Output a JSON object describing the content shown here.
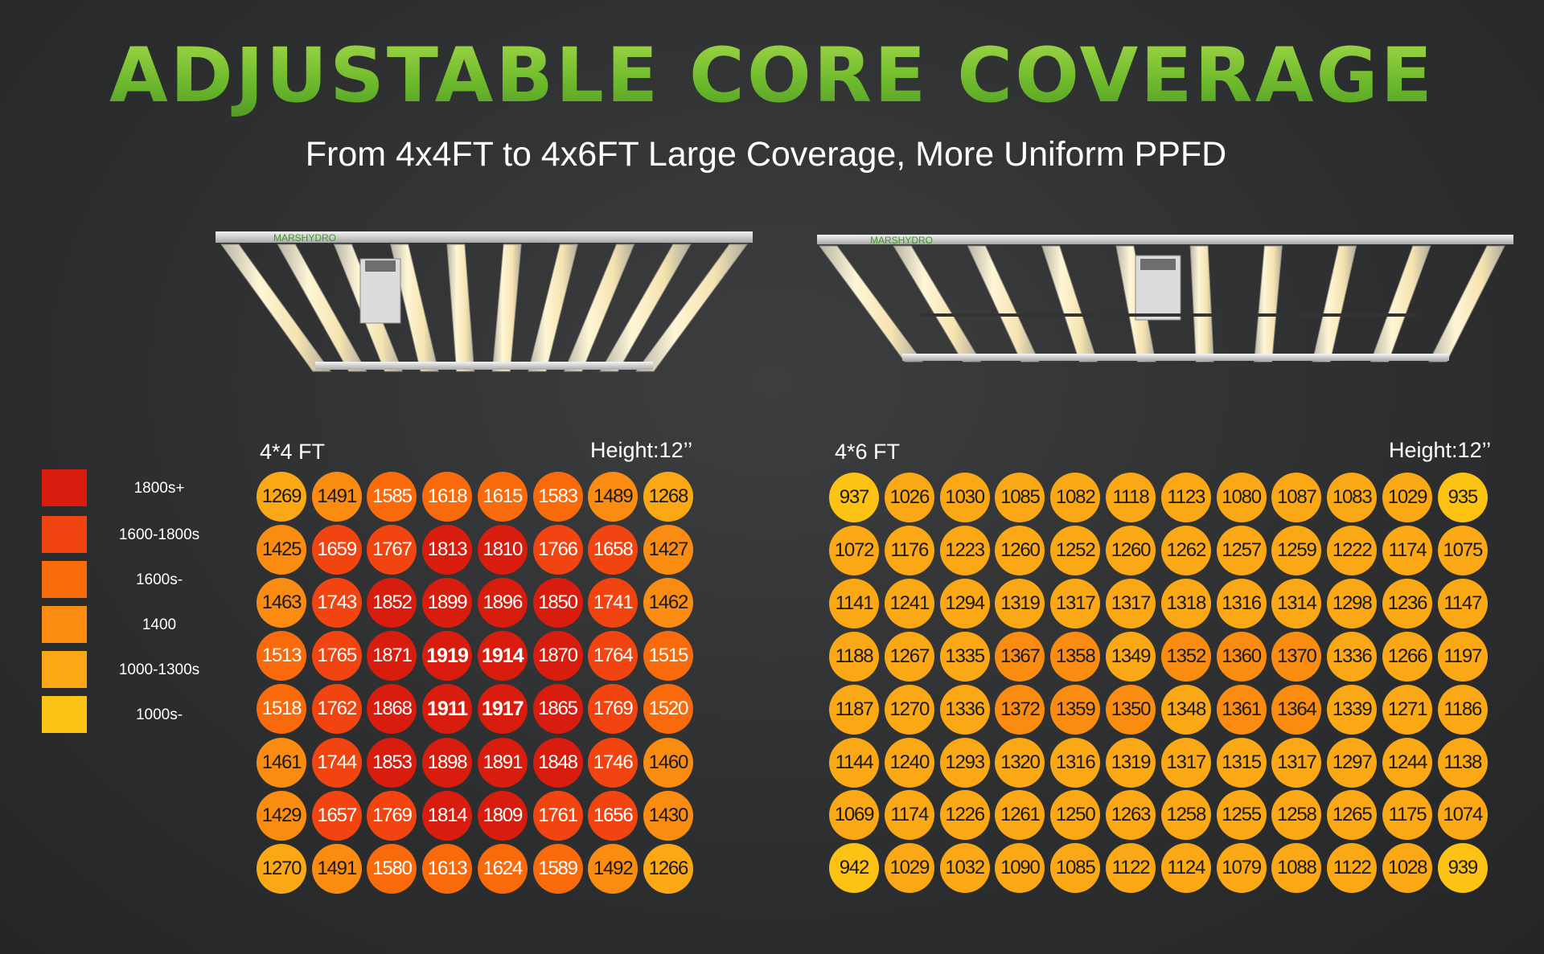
{
  "title": "ADJUSTABLE CORE COVERAGE",
  "subtitle": "From 4x4FT to 4x6FT Large Coverage, More Uniform PPFD",
  "brand": "MARSHYDRO",
  "colors": {
    "title_green": "#7ec43a",
    "c1800plus": "#d81c0d",
    "c1600_1800": "#f24410",
    "c1600minus": "#f86a0c",
    "c1400": "#fa8c12",
    "c1000_1300": "#fba816",
    "c1000minus": "#fdc314"
  },
  "legend": [
    {
      "label": "1800s+",
      "color": "#d81c0d"
    },
    {
      "label": "1600-1800s",
      "color": "#f24410"
    },
    {
      "label": "1600s-",
      "color": "#f86a0c"
    },
    {
      "label": "1400",
      "color": "#fa8c12"
    },
    {
      "label": "1000-1300s",
      "color": "#fba816"
    },
    {
      "label": "1000s-",
      "color": "#fdc314"
    }
  ],
  "grid_small": {
    "label": "4*4 FT",
    "height": "Height:12’’",
    "rows": [
      [
        1269,
        1491,
        1585,
        1618,
        1615,
        1583,
        1489,
        1268
      ],
      [
        1425,
        1659,
        1767,
        1813,
        1810,
        1766,
        1658,
        1427
      ],
      [
        1463,
        1743,
        1852,
        1899,
        1896,
        1850,
        1741,
        1462
      ],
      [
        1513,
        1765,
        1871,
        1919,
        1914,
        1870,
        1764,
        1515
      ],
      [
        1518,
        1762,
        1868,
        1911,
        1917,
        1865,
        1769,
        1520
      ],
      [
        1461,
        1744,
        1853,
        1898,
        1891,
        1848,
        1746,
        1460
      ],
      [
        1429,
        1657,
        1769,
        1814,
        1809,
        1761,
        1656,
        1430
      ],
      [
        1270,
        1491,
        1580,
        1613,
        1624,
        1589,
        1492,
        1266
      ]
    ]
  },
  "grid_large": {
    "label": "4*6 FT",
    "height": "Height:12’’",
    "rows": [
      [
        937,
        1026,
        1030,
        1085,
        1082,
        1118,
        1123,
        1080,
        1087,
        1083,
        1029,
        935
      ],
      [
        1072,
        1176,
        1223,
        1260,
        1252,
        1260,
        1262,
        1257,
        1259,
        1222,
        1174,
        1075
      ],
      [
        1141,
        1241,
        1294,
        1319,
        1317,
        1317,
        1318,
        1316,
        1314,
        1298,
        1236,
        1147
      ],
      [
        1188,
        1267,
        1335,
        1367,
        1358,
        1349,
        1352,
        1360,
        1370,
        1336,
        1266,
        1197
      ],
      [
        1187,
        1270,
        1336,
        1372,
        1359,
        1350,
        1348,
        1361,
        1364,
        1339,
        1271,
        1186
      ],
      [
        1144,
        1240,
        1293,
        1320,
        1316,
        1319,
        1317,
        1315,
        1317,
        1297,
        1244,
        1138
      ],
      [
        1069,
        1174,
        1226,
        1261,
        1250,
        1263,
        1258,
        1255,
        1258,
        1265,
        1175,
        1074
      ],
      [
        942,
        1029,
        1032,
        1090,
        1085,
        1122,
        1124,
        1079,
        1088,
        1122,
        1028,
        939
      ]
    ]
  }
}
